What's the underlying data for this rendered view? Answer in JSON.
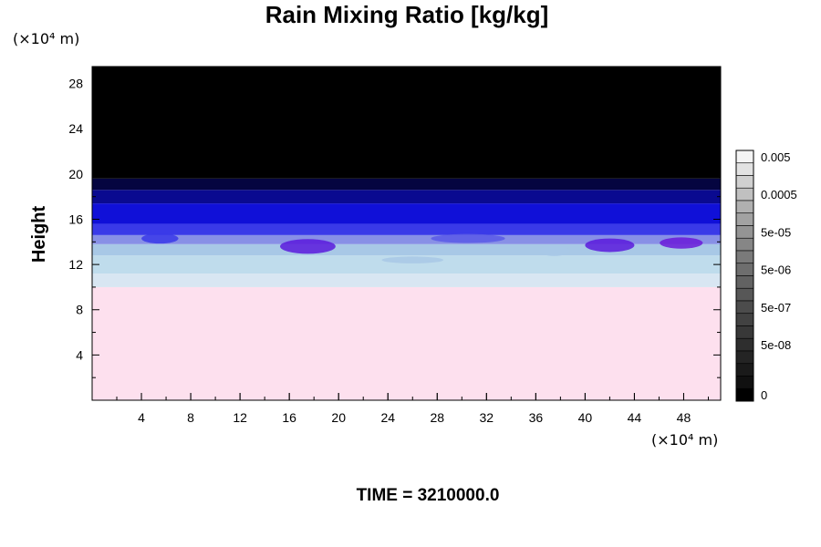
{
  "chart_data": {
    "type": "heatmap",
    "title": "Rain Mixing Ratio [kg/kg]",
    "ylabel": "Height",
    "xlabel": "",
    "x_unit": "(×10⁴ m)",
    "y_unit": "(×10⁴ m)",
    "xlim": [
      0,
      51
    ],
    "ylim": [
      0,
      29.5
    ],
    "x_ticks": [
      "4",
      "8",
      "12",
      "16",
      "20",
      "24",
      "28",
      "32",
      "36",
      "40",
      "44",
      "48"
    ],
    "x_tick_values": [
      4,
      8,
      12,
      16,
      20,
      24,
      28,
      32,
      36,
      40,
      44,
      48
    ],
    "y_ticks": [
      "4",
      "8",
      "12",
      "16",
      "20",
      "24",
      "28"
    ],
    "y_tick_values": [
      4,
      8,
      12,
      16,
      20,
      24,
      28
    ],
    "layers": [
      {
        "y_from": 0,
        "y_to": 10,
        "color": "#fde0ee"
      },
      {
        "y_from": 10,
        "y_to": 11.2,
        "color": "#d8e6f2"
      },
      {
        "y_from": 11.2,
        "y_to": 12.8,
        "color": "#bfdcec"
      },
      {
        "y_from": 12.8,
        "y_to": 13.8,
        "color": "#a8c8e6"
      },
      {
        "y_from": 13.8,
        "y_to": 14.6,
        "color": "#8890e6"
      },
      {
        "y_from": 14.6,
        "y_to": 15.6,
        "color": "#3a3ae8"
      },
      {
        "y_from": 15.6,
        "y_to": 17.4,
        "color": "#1010d8"
      },
      {
        "y_from": 17.4,
        "y_to": 18.6,
        "color": "#0a0a90"
      },
      {
        "y_from": 18.6,
        "y_to": 19.6,
        "color": "#050540"
      },
      {
        "y_from": 19.6,
        "y_to": 29.5,
        "color": "#000000"
      }
    ],
    "blobs": [
      {
        "x": 5.5,
        "y": 14.3,
        "w": 3.0,
        "h": 0.9,
        "color": "#3a3ae8"
      },
      {
        "x": 17.5,
        "y": 13.6,
        "w": 4.5,
        "h": 1.3,
        "color": "#5a1adc"
      },
      {
        "x": 42.0,
        "y": 13.7,
        "w": 4.0,
        "h": 1.2,
        "color": "#5a1adc"
      },
      {
        "x": 47.8,
        "y": 13.9,
        "w": 3.5,
        "h": 1.0,
        "color": "#6a1ad8"
      },
      {
        "x": 30.5,
        "y": 14.3,
        "w": 6.0,
        "h": 0.8,
        "color": "#5a5ae6"
      },
      {
        "x": 37.5,
        "y": 13.2,
        "w": 2.5,
        "h": 0.9,
        "color": "#a8c8e6"
      },
      {
        "x": 26.0,
        "y": 12.4,
        "w": 5.0,
        "h": 0.6,
        "color": "#a8c8e6"
      }
    ],
    "colorbar": {
      "labels": [
        "0.005",
        "0.0005",
        "5e-05",
        "5e-06",
        "5e-07",
        "5e-08",
        "0"
      ],
      "label_steps": [
        1,
        4,
        7,
        10,
        13,
        16,
        20
      ],
      "colors": [
        "#f4f4f4",
        "#e2e2e2",
        "#d0d0d0",
        "#c0c0c0",
        "#b0b0b0",
        "#a2a2a2",
        "#949494",
        "#868686",
        "#7a7a7a",
        "#6e6e6e",
        "#626262",
        "#575757",
        "#4c4c4c",
        "#424242",
        "#383838",
        "#2e2e2e",
        "#242424",
        "#1a1a1a",
        "#101010",
        "#000000"
      ]
    },
    "time_label": "TIME = 3210000.0"
  }
}
